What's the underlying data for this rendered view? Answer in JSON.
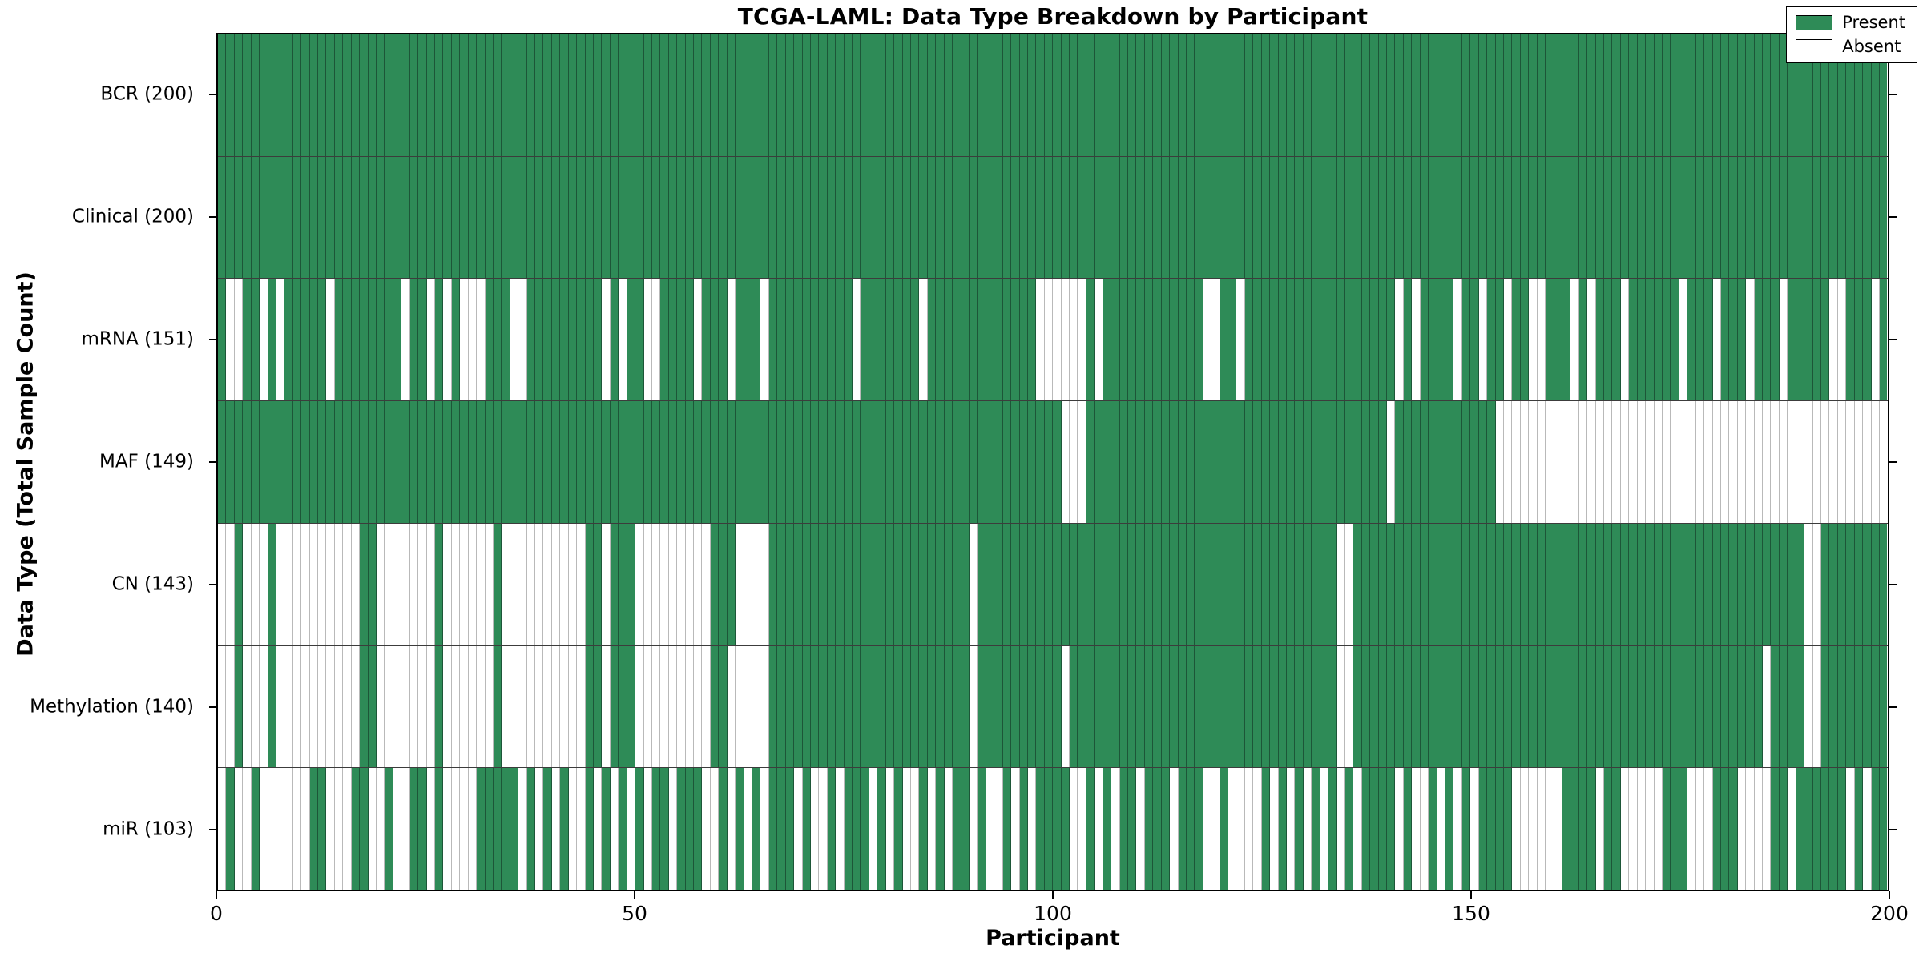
{
  "title": "TCGA-LAML: Data Type Breakdown by Participant",
  "xlabel": "Participant",
  "ylabel": "Data Type (Total Sample Count)",
  "legend": {
    "present_label": "Present",
    "absent_label": "Absent"
  },
  "colors": {
    "present": "#2e8b57",
    "absent": "#ffffff",
    "spine": "#000000",
    "row_divider": "#3c3c3c"
  },
  "x_ticks": [
    0,
    50,
    100,
    150,
    200
  ],
  "chart_data": {
    "type": "heatmap",
    "title": "TCGA-LAML: Data Type Breakdown by Participant",
    "xlabel": "Participant",
    "ylabel": "Data Type (Total Sample Count)",
    "x_range": [
      0,
      200
    ],
    "x_tick_values": [
      0,
      50,
      100,
      150,
      200
    ],
    "legend_entries": [
      "Present",
      "Absent"
    ],
    "legend_position": "upper right",
    "cell_values": {
      "present": 1,
      "absent": 0
    },
    "categories": [
      "BCR (200)",
      "Clinical (200)",
      "mRNA (151)",
      "MAF (149)",
      "CN (143)",
      "Methylation (140)",
      "miR (103)"
    ],
    "rows": [
      {
        "name": "BCR",
        "label": "BCR (200)",
        "present_count": 200,
        "pattern": [
          "1111111111",
          "1111111111",
          "1111111111",
          "1111111111",
          "1111111111",
          "1111111111",
          "1111111111",
          "1111111111",
          "1111111111",
          "1111111111",
          "1111111111",
          "1111111111",
          "1111111111",
          "1111111111",
          "1111111111",
          "1111111111",
          "1111111111",
          "1111111111",
          "1111111111",
          "1111111111"
        ]
      },
      {
        "name": "Clinical",
        "label": "Clinical (200)",
        "present_count": 200,
        "pattern": [
          "1111111111",
          "1111111111",
          "1111111111",
          "1111111111",
          "1111111111",
          "1111111111",
          "1111111111",
          "1111111111",
          "1111111111",
          "1111111111",
          "1111111111",
          "1111111111",
          "1111111111",
          "1111111111",
          "1111111111",
          "1111111111",
          "1111111111",
          "1111111111",
          "1111111111",
          "1111111111"
        ]
      },
      {
        "name": "mRNA",
        "label": "mRNA (151)",
        "present_count": 151,
        "pattern": [
          "1001101011",
          "1110111111",
          "1101101010",
          "0011100111",
          "1111110101",
          "1001111011",
          "1011101111",
          "1111110111",
          "1111011111",
          "1111111100",
          "0000101111",
          "1111111100",
          "1101111111",
          "1111111111",
          "1010111101",
          "1011011001",
          "1101011101",
          "1111101110",
          "1110111011",
          "1110011101"
        ]
      },
      {
        "name": "MAF",
        "label": "MAF (149)",
        "present_count": 149,
        "pattern": [
          "1111111111",
          "1111111111",
          "1111111111",
          "1111111111",
          "1111111111",
          "1111111111",
          "1111111111",
          "1111111111",
          "1111111111",
          "1111111111",
          "1000111111",
          "1111111111",
          "1111111111",
          "1111111111",
          "0111111111",
          "1110000000",
          "0000000000",
          "0000000000",
          "0000000000",
          "0000000000"
        ]
      },
      {
        "name": "CN",
        "label": "CN (143)",
        "present_count": 143,
        "pattern": [
          "0010001000",
          "0000000110",
          "0000001000",
          "0001000000",
          "0000110111",
          "0000000001",
          "1100001111",
          "1111111111",
          "1111111111",
          "0111111111",
          "1111111111",
          "1111111111",
          "1111111111",
          "1111001111",
          "1111111111",
          "1111111111",
          "1111111111",
          "1111111111",
          "1111111111",
          "0011111111"
        ]
      },
      {
        "name": "Methylation",
        "label": "Methylation (140)",
        "present_count": 140,
        "pattern": [
          "0010001000",
          "0000000110",
          "0000001000",
          "0001000000",
          "0000110111",
          "0000000001",
          "1000001111",
          "1111111111",
          "1111111111",
          "0111111111",
          "1011111111",
          "1111111111",
          "1111111111",
          "1111001111",
          "1111111111",
          "1111111111",
          "1111111111",
          "1111111111",
          "1111101111",
          "0011111111"
        ]
      },
      {
        "name": "miR",
        "label": "miR (103)",
        "present_count": 103,
        "pattern": [
          "0100100000",
          "0110001100",
          "1001101000",
          "0111110101",
          "0100101010",
          "1011011100",
          "1010101110",
          "1001011101",
          "0100101011",
          "0100101011",
          "1100101011",
          "0111011100",
          "1000010101",
          "0101010111",
          "1010010101",
          "0111100000",
          "0111101100",
          "0001110001",
          "1100001101",
          "1111101011"
        ]
      }
    ]
  }
}
